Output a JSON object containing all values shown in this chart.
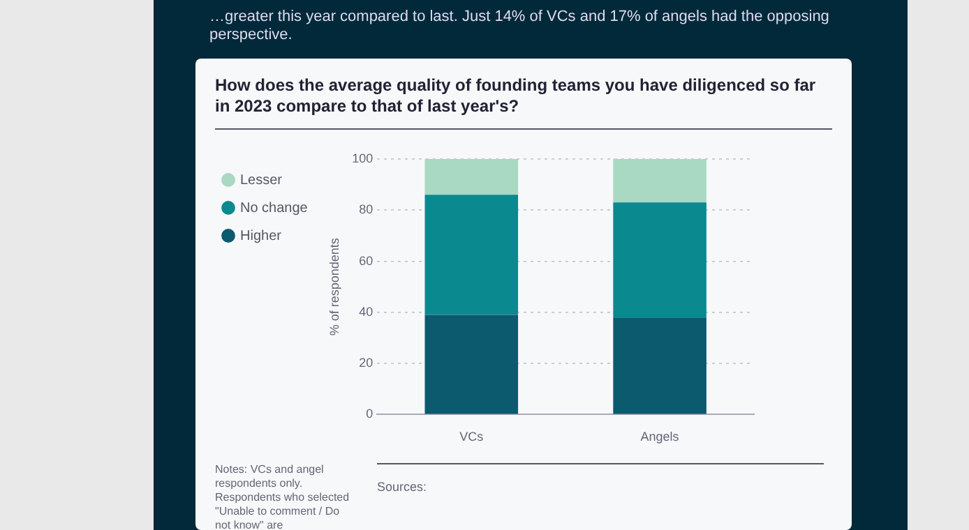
{
  "chart_data": {
    "type": "bar",
    "stacked": true,
    "title": "How does the average quality of founding teams you have diligenced so far in 2023 compare to that of last year's?",
    "categories": [
      "VCs",
      "Angels"
    ],
    "series": [
      {
        "name": "Higher",
        "color": "#0b5a6e",
        "values": [
          39,
          38
        ]
      },
      {
        "name": "No change",
        "color": "#0a8a8f",
        "values": [
          47,
          45
        ]
      },
      {
        "name": "Lesser",
        "color": "#a9d8c3",
        "values": [
          14,
          17
        ]
      }
    ],
    "ylabel": "% of respondents",
    "ylim": [
      0,
      100
    ],
    "yticks": [
      0,
      20,
      40,
      60,
      80,
      100
    ],
    "grid": "y",
    "legend": "left",
    "annotations": [
      "…greater this year compared to last. Just 14% of VCs and 17% of angels had the opposing perspective.",
      "Notes: VCs and angel respondents only. Respondents who selected \"Unable to comment / Do not know\" are",
      "Sources:"
    ]
  }
}
